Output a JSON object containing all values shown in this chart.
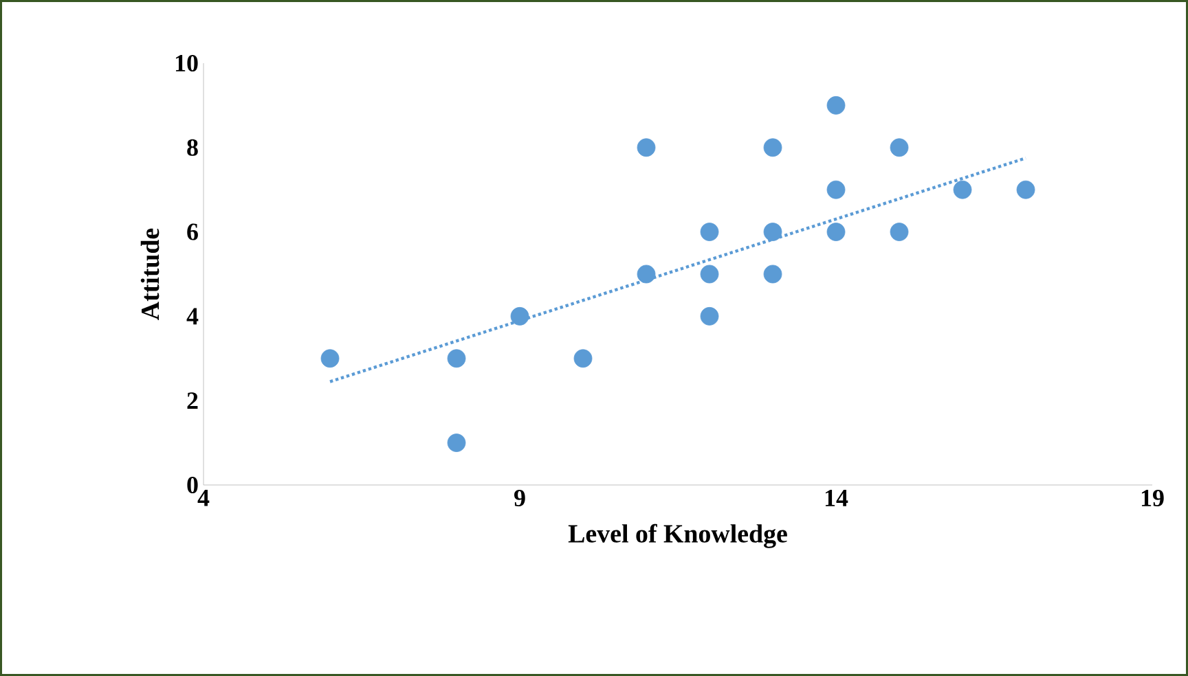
{
  "chart_data": {
    "type": "scatter",
    "xlabel": "Level of Knowledge",
    "ylabel": "Attitude",
    "xlim": [
      4,
      19
    ],
    "xticks": [
      4,
      9,
      14,
      19
    ],
    "ylim": [
      0,
      10
    ],
    "yticks": [
      0,
      2,
      4,
      6,
      8,
      10
    ],
    "grid": false,
    "series": [
      {
        "color": "#5b9bd5",
        "marker": "circle",
        "x": [
          6,
          8,
          8,
          9,
          10,
          11,
          11,
          12,
          12,
          12,
          13,
          13,
          13,
          14,
          14,
          14,
          15,
          15,
          16,
          17
        ],
        "values": [
          3,
          3,
          1,
          4,
          3,
          8,
          5,
          6,
          5,
          4,
          8,
          6,
          5,
          9,
          7,
          6,
          8,
          6,
          7,
          7
        ]
      },
      {
        "type": "line",
        "color": "#5b9bd5",
        "line_style": "dotted",
        "marker": "none",
        "x": [
          6,
          17
        ],
        "values": [
          2.45,
          7.75
        ]
      }
    ]
  }
}
